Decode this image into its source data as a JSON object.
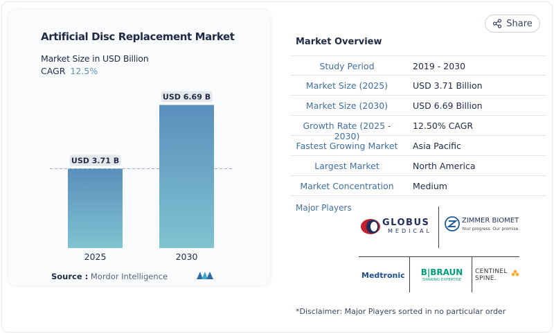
{
  "chart": {
    "title": "Artificial Disc Replacement Market",
    "subtitle": "Market Size in USD Billion",
    "cagr_label": "CAGR",
    "cagr_value": "12.5%",
    "source_label": "Source :",
    "source_value": "Mordor Intelligence"
  },
  "chart_data": {
    "type": "bar",
    "categories": [
      "2025",
      "2030"
    ],
    "values": [
      3.71,
      6.69
    ],
    "data_labels": [
      "USD 3.71 B",
      "USD 6.69 B"
    ],
    "title": "Artificial Disc Replacement Market",
    "subtitle": "Market Size in USD Billion",
    "ylim": [
      0,
      7.45
    ],
    "grid": false,
    "reference_line_at": 3.71,
    "colors": {
      "bar_top": "#5a8fbc",
      "bar_bottom": "#7fc3d0",
      "label_bg": "#e4e7ec"
    }
  },
  "share": {
    "label": "Share",
    "icon": "share-icon"
  },
  "overview": {
    "title": "Market Overview",
    "rows": [
      {
        "key": "Study Period",
        "value": "2019 - 2030"
      },
      {
        "key": "Market Size (2025)",
        "value": "USD 3.71 Billion"
      },
      {
        "key": "Market Size (2030)",
        "value": "USD 6.69 Billion"
      },
      {
        "key": "Growth Rate (2025 - 2030)",
        "value": "12.50% CAGR"
      },
      {
        "key": "Fastest Growing Market",
        "value": "Asia Pacific"
      },
      {
        "key": "Largest Market",
        "value": "North America"
      },
      {
        "key": "Market Concentration",
        "value": "Medium"
      }
    ]
  },
  "players": {
    "title": "Major Players",
    "logos": {
      "globus_top": "GLOBUS",
      "globus_bottom": "MEDICAL",
      "zimmer_name": "ZIMMER BIOMET",
      "zimmer_tagline": "Your progress. Our promise.",
      "medtronic": "Medtronic",
      "bbraun_name": "B|BRAUN",
      "bbraun_tagline": "SHARING EXPERTISE",
      "centinel_top": "CENTINEL",
      "centinel_bottom": "SPINE."
    }
  },
  "disclaimer": "*Disclaimer: Major Players sorted in no particular order",
  "colors": {
    "accent": "#3f6fa0",
    "cagr": "#5b90b8",
    "text": "#1f2a44"
  }
}
